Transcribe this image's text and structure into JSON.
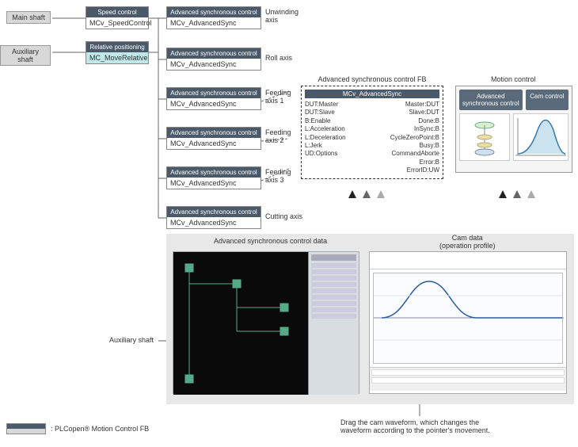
{
  "shafts": {
    "main": "Main shaft",
    "aux": "Auxiliary shaft"
  },
  "blocks": {
    "speed": {
      "hdr": "Speed control",
      "body": "MCv_SpeedControl"
    },
    "relpos": {
      "hdr": "Relative positioning",
      "body": "MC_MoveRelative"
    },
    "adv": {
      "hdr": "Advanced synchronous control",
      "body": "MCv_AdvancedSync"
    }
  },
  "axes": {
    "unwind": "Unwinding\naxis",
    "roll": "Roll axis",
    "feed1": "Feeding\naxis 1",
    "feed2": "Feeding\naxis 2",
    "feed3": "Feeding\naxis 3",
    "cutting": "Cutting axis"
  },
  "fb": {
    "title": "Advanced synchronous control FB",
    "name": "MCv_AdvancedSync",
    "rows": [
      [
        "DUT:Master",
        "Master:DUT"
      ],
      [
        "DUT:Slave",
        "Slave:DUT"
      ],
      [
        "B:Enable",
        "Done:B"
      ],
      [
        "L:Acceleration",
        "InSync:B"
      ],
      [
        "L:Deceleration",
        "CycleZeroPoint:B"
      ],
      [
        "L:Jerk",
        "Busy:B"
      ],
      [
        "UD:Options",
        "CommandAborte"
      ],
      [
        "",
        "Error:B"
      ],
      [
        "",
        "ErrorID:UW"
      ]
    ]
  },
  "motion": {
    "title": "Motion control",
    "chip1": "Advanced\nsynchronous control",
    "chip2": "Cam control",
    "curve_color": "#7db8d8"
  },
  "bottom": {
    "left_title": "Advanced synchronous control data",
    "right_title": "Cam data\n(operation profile)",
    "aux_label": "Auxiliary shaft",
    "drag_note": "Drag the cam waveform, which changes the\nwaveform according to the pointer's movement."
  },
  "arrows": {
    "dark": "#222",
    "mid": "#666",
    "light": "#aaa"
  },
  "legend": ": PLCopen® Motion Control  FB",
  "colors": {
    "hdr_bg": "#4a5a6a",
    "gray_box": "#d8d8d8",
    "panel_bg": "#e8e8e8",
    "mc_green": "#c0e8e8"
  }
}
